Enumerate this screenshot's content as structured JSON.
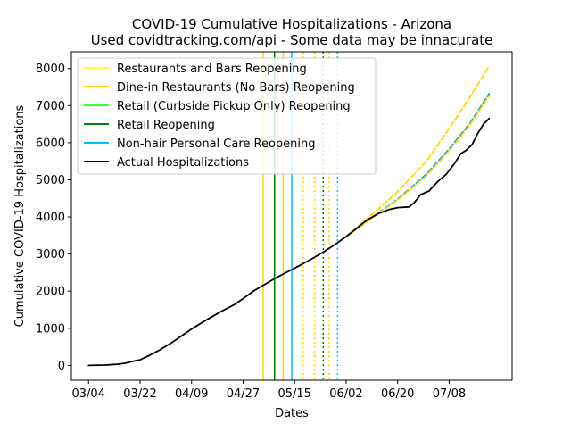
{
  "chart_data": {
    "type": "line",
    "title": "COVID-19 Cumulative Hospitalizations - Arizona",
    "subtitle": "Used covidtracking.com/api - Some data may be innacurate",
    "xlabel": "Dates",
    "ylabel": "Cumulative COVID-19 Hospitalizations",
    "x_axis_type": "date",
    "xlim": [
      "2020-02-27",
      "2020-07-30"
    ],
    "ylim": [
      -400,
      8450
    ],
    "x_ticks": [
      {
        "date": "2020-03-04",
        "label": "03/04"
      },
      {
        "date": "2020-03-22",
        "label": "03/22"
      },
      {
        "date": "2020-04-09",
        "label": "04/09"
      },
      {
        "date": "2020-04-27",
        "label": "04/27"
      },
      {
        "date": "2020-05-15",
        "label": "05/15"
      },
      {
        "date": "2020-06-02",
        "label": "06/02"
      },
      {
        "date": "2020-06-20",
        "label": "06/20"
      },
      {
        "date": "2020-07-08",
        "label": "07/08"
      }
    ],
    "y_ticks": [
      0,
      1000,
      2000,
      3000,
      4000,
      5000,
      6000,
      7000,
      8000
    ],
    "grid": false,
    "legend_position": "top-left",
    "colors": {
      "restaurants_bars": "#ffff33",
      "dine_in": "#ffd700",
      "retail_curbside": "#33ff33",
      "retail": "#008000",
      "personal_care": "#00bfff",
      "actual": "#000000",
      "projection_teal": "#1aa39a"
    },
    "legend": [
      {
        "label": "Restaurants and Bars Reopening",
        "color": "#ffff33"
      },
      {
        "label": "Dine-in Restaurants (No Bars) Reopening",
        "color": "#ffd700"
      },
      {
        "label": "Retail (Curbside Pickup Only) Reopening",
        "color": "#33ff33"
      },
      {
        "label": "Retail Reopening",
        "color": "#008000"
      },
      {
        "label": "Non-hair Personal Care Reopening",
        "color": "#00bfff"
      },
      {
        "label": "Actual Hospitalizations",
        "color": "#000000"
      }
    ],
    "reopening_lines": [
      {
        "date": "2020-05-04",
        "color": "#ffd700",
        "style": "solid"
      },
      {
        "date": "2020-05-08",
        "color": "#008000",
        "style": "solid"
      },
      {
        "date": "2020-05-11",
        "color": "#ffd700",
        "style": "solid"
      },
      {
        "date": "2020-05-14",
        "color": "#00bfff",
        "style": "solid"
      },
      {
        "date": "2020-05-18",
        "color": "#ffd700",
        "style": "dotted"
      },
      {
        "date": "2020-05-22",
        "color": "#ffd700",
        "style": "dotted"
      },
      {
        "date": "2020-05-25",
        "color": "#008000",
        "style": "dotted"
      },
      {
        "date": "2020-05-27",
        "color": "#ffd700",
        "style": "dotted"
      },
      {
        "date": "2020-05-30",
        "color": "#00bfff",
        "style": "dotted"
      }
    ],
    "series": [
      {
        "style": "solid",
        "color": "#000000",
        "points": [
          [
            "2020-03-04",
            0
          ],
          [
            "2020-03-10",
            10
          ],
          [
            "2020-03-14",
            30
          ],
          [
            "2020-03-17",
            60
          ],
          [
            "2020-03-20",
            120
          ],
          [
            "2020-03-22",
            150
          ],
          [
            "2020-03-25",
            260
          ],
          [
            "2020-03-29",
            420
          ],
          [
            "2020-04-02",
            610
          ],
          [
            "2020-04-06",
            820
          ],
          [
            "2020-04-09",
            980
          ],
          [
            "2020-04-13",
            1170
          ],
          [
            "2020-04-17",
            1350
          ],
          [
            "2020-04-20",
            1480
          ],
          [
            "2020-04-24",
            1640
          ],
          [
            "2020-04-27",
            1800
          ],
          [
            "2020-05-01",
            2020
          ],
          [
            "2020-05-05",
            2200
          ],
          [
            "2020-05-09",
            2380
          ],
          [
            "2020-05-13",
            2540
          ],
          [
            "2020-05-17",
            2700
          ],
          [
            "2020-05-21",
            2870
          ],
          [
            "2020-05-25",
            3050
          ],
          [
            "2020-05-29",
            3250
          ],
          [
            "2020-06-02",
            3470
          ],
          [
            "2020-06-05",
            3650
          ],
          [
            "2020-06-09",
            3900
          ],
          [
            "2020-06-13",
            4080
          ],
          [
            "2020-06-17",
            4200
          ],
          [
            "2020-06-20",
            4250
          ],
          [
            "2020-06-24",
            4270
          ],
          [
            "2020-06-26",
            4400
          ],
          [
            "2020-06-28",
            4600
          ],
          [
            "2020-07-01",
            4700
          ],
          [
            "2020-07-04",
            4950
          ],
          [
            "2020-07-07",
            5150
          ],
          [
            "2020-07-10",
            5450
          ],
          [
            "2020-07-12",
            5700
          ],
          [
            "2020-07-14",
            5800
          ],
          [
            "2020-07-16",
            5950
          ],
          [
            "2020-07-18",
            6250
          ],
          [
            "2020-07-20",
            6500
          ],
          [
            "2020-07-22",
            6650
          ]
        ]
      },
      {
        "style": "dashed",
        "color": "#ffd700",
        "points": [
          [
            "2020-06-02",
            3470
          ],
          [
            "2020-06-10",
            4000
          ],
          [
            "2020-06-20",
            4680
          ],
          [
            "2020-06-30",
            5500
          ],
          [
            "2020-07-08",
            6380
          ],
          [
            "2020-07-15",
            7200
          ],
          [
            "2020-07-22",
            8070
          ]
        ]
      },
      {
        "style": "dashed",
        "color": "#1aa39a",
        "points": [
          [
            "2020-06-02",
            3470
          ],
          [
            "2020-06-10",
            3920
          ],
          [
            "2020-06-20",
            4480
          ],
          [
            "2020-06-30",
            5150
          ],
          [
            "2020-07-08",
            5830
          ],
          [
            "2020-07-15",
            6500
          ],
          [
            "2020-07-22",
            7320
          ]
        ]
      },
      {
        "style": "dashed",
        "color": "#00bfff",
        "points": [
          [
            "2020-06-02",
            3470
          ],
          [
            "2020-06-10",
            3910
          ],
          [
            "2020-06-20",
            4470
          ],
          [
            "2020-06-30",
            5130
          ],
          [
            "2020-07-08",
            5810
          ],
          [
            "2020-07-15",
            6480
          ],
          [
            "2020-07-22",
            7290
          ]
        ]
      },
      {
        "style": "dashed",
        "color": "#ffd700",
        "points": [
          [
            "2020-06-02",
            3470
          ],
          [
            "2020-06-10",
            3900
          ],
          [
            "2020-06-20",
            4460
          ],
          [
            "2020-06-30",
            5100
          ],
          [
            "2020-07-08",
            5780
          ],
          [
            "2020-07-15",
            6450
          ],
          [
            "2020-07-22",
            7260
          ]
        ]
      }
    ]
  }
}
